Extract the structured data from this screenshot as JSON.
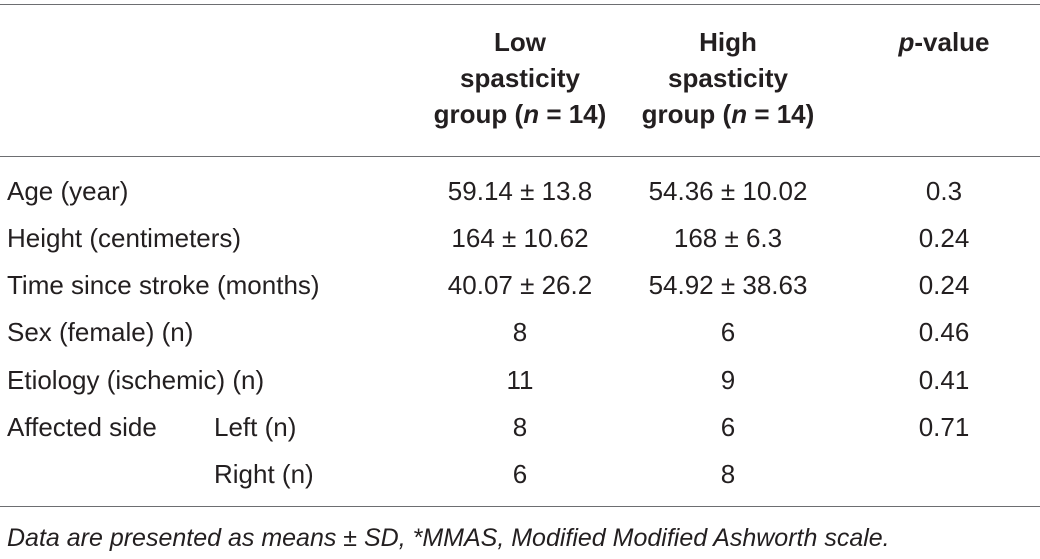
{
  "header": {
    "col1": {
      "line1": "Low",
      "line2": "spasticity",
      "line3_pre": "group (",
      "n_symbol": "n",
      "line3_post": " = 14)"
    },
    "col2": {
      "line1": "High",
      "line2": "spasticity",
      "line3_pre": "group (",
      "n_symbol": "n",
      "line3_post": " = 14)"
    },
    "col3": {
      "p_symbol": "p",
      "suffix": "-value"
    }
  },
  "rows": [
    {
      "label": "Age (year)",
      "low": "59.14 ± 13.8",
      "high": "54.36 ± 10.02",
      "p": "0.3"
    },
    {
      "label": "Height (centimeters)",
      "low": "164 ± 10.62",
      "high": "168 ± 6.3",
      "p": "0.24"
    },
    {
      "label": "Time since stroke (months)",
      "low": "40.07 ± 26.2",
      "high": "54.92 ± 38.63",
      "p": "0.24"
    },
    {
      "label": "Sex (female) (n)",
      "low": "8",
      "high": "6",
      "p": "0.46"
    },
    {
      "label": "Etiology (ischemic) (n)",
      "low": "11",
      "high": "9",
      "p": "0.41"
    },
    {
      "label": "Affected side",
      "sublabel": "Left (n)",
      "low": "8",
      "high": "6",
      "p": "0.71"
    },
    {
      "sublabel": "Right (n)",
      "low": "6",
      "high": "8"
    }
  ],
  "footnote": "Data are presented as means ± SD, *MMAS, Modified Modified Ashworth scale."
}
